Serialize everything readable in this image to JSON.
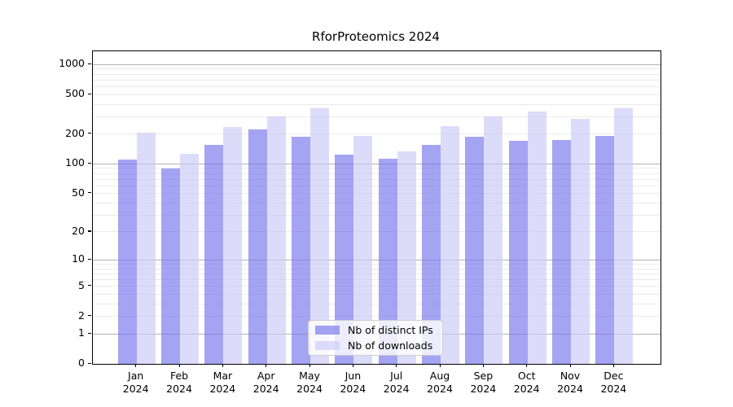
{
  "chart_data": {
    "type": "bar",
    "title": "RforProteomics 2024",
    "year_label": "2024",
    "months": [
      "Jan",
      "Feb",
      "Mar",
      "Apr",
      "May",
      "Jun",
      "Jul",
      "Aug",
      "Sep",
      "Oct",
      "Nov",
      "Dec"
    ],
    "series": [
      {
        "name": "Nb of distinct IPs",
        "color": "rgba(115,115,235,0.65)",
        "values": [
          110,
          90,
          155,
          222,
          187,
          125,
          113,
          157,
          188,
          170,
          175,
          190
        ]
      },
      {
        "name": "Nb of downloads",
        "color": "rgba(201,201,247,0.65)",
        "values": [
          205,
          126,
          234,
          300,
          362,
          193,
          135,
          240,
          300,
          340,
          285,
          362
        ]
      }
    ],
    "y_axis": {
      "scale": "log1p",
      "tick_values": [
        0,
        1,
        2,
        5,
        10,
        20,
        50,
        100,
        200,
        500,
        1000
      ],
      "major_gridlines": [
        1,
        10,
        100,
        1000
      ],
      "minor_gridlines": [
        2,
        3,
        4,
        5,
        6,
        7,
        8,
        9,
        20,
        30,
        40,
        50,
        60,
        70,
        80,
        90,
        200,
        300,
        400,
        500,
        600,
        700,
        800,
        900
      ],
      "top_value": 1360
    },
    "legend_position": "lower center",
    "grid": true,
    "background_color": "#ffffff",
    "text_color": "#000000"
  }
}
